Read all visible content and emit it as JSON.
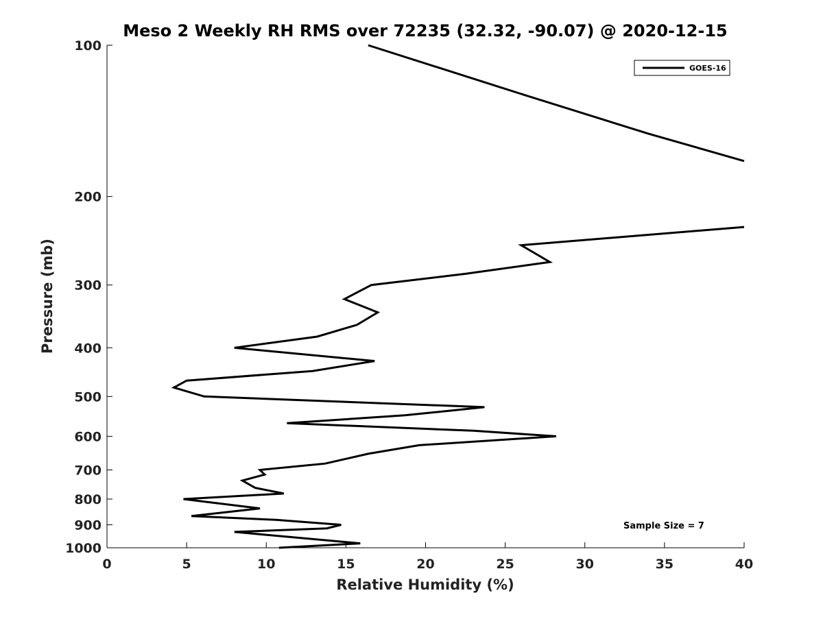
{
  "chart_data": {
    "type": "line",
    "title": "Meso 2 Weekly RH RMS over 72235 (32.32, -90.07) @ 2020-12-15",
    "xlabel": "Relative Humidity (%)",
    "ylabel": "Pressure (mb)",
    "xlim": [
      0,
      40
    ],
    "ylim": [
      100,
      1000
    ],
    "yscale": "log",
    "y_reversed": true,
    "x_ticks": [
      0,
      5,
      10,
      15,
      20,
      25,
      30,
      35,
      40
    ],
    "x_tick_labels": [
      "0",
      "5",
      "10",
      "15",
      "20",
      "25",
      "30",
      "35",
      "40"
    ],
    "y_ticks": [
      100,
      200,
      300,
      400,
      500,
      600,
      700,
      800,
      900,
      1000
    ],
    "y_tick_labels": [
      "100",
      "200",
      "300",
      "400",
      "500",
      "600",
      "700",
      "800",
      "900",
      "1000"
    ],
    "grid": false,
    "legend_position": "top-right",
    "annotation": "Sample Size = 7",
    "series": [
      {
        "name": "GOES-16",
        "color": "#000000",
        "segments": [
          {
            "rh": [
              16.4,
              26.0,
              34.0,
              40.0
            ],
            "pressure": [
              100,
              125,
              150,
              170
            ]
          },
          {
            "rh": [
              40.0,
              26.0,
              27.8,
              22.5,
              16.6,
              14.9,
              17.0,
              15.7,
              13.2,
              8.0,
              16.8,
              12.9,
              5.0,
              4.2,
              6.1,
              23.7,
              18.7,
              11.3,
              23.0,
              28.2,
              19.6,
              16.4,
              13.7,
              9.6,
              9.9,
              8.5,
              9.3,
              11.1,
              4.8,
              9.6,
              5.3,
              10.6,
              14.7,
              13.8,
              8.0,
              15.9,
              10.8
            ],
            "pressure": [
              230,
              250,
              270,
              285,
              300,
              320,
              340,
              360,
              380,
              400,
              425,
              445,
              465,
              480,
              500,
              525,
              545,
              565,
              585,
              600,
              625,
              650,
              680,
              700,
              715,
              735,
              760,
              780,
              800,
              835,
              865,
              880,
              900,
              915,
              930,
              980,
              1000
            ]
          }
        ]
      }
    ]
  }
}
